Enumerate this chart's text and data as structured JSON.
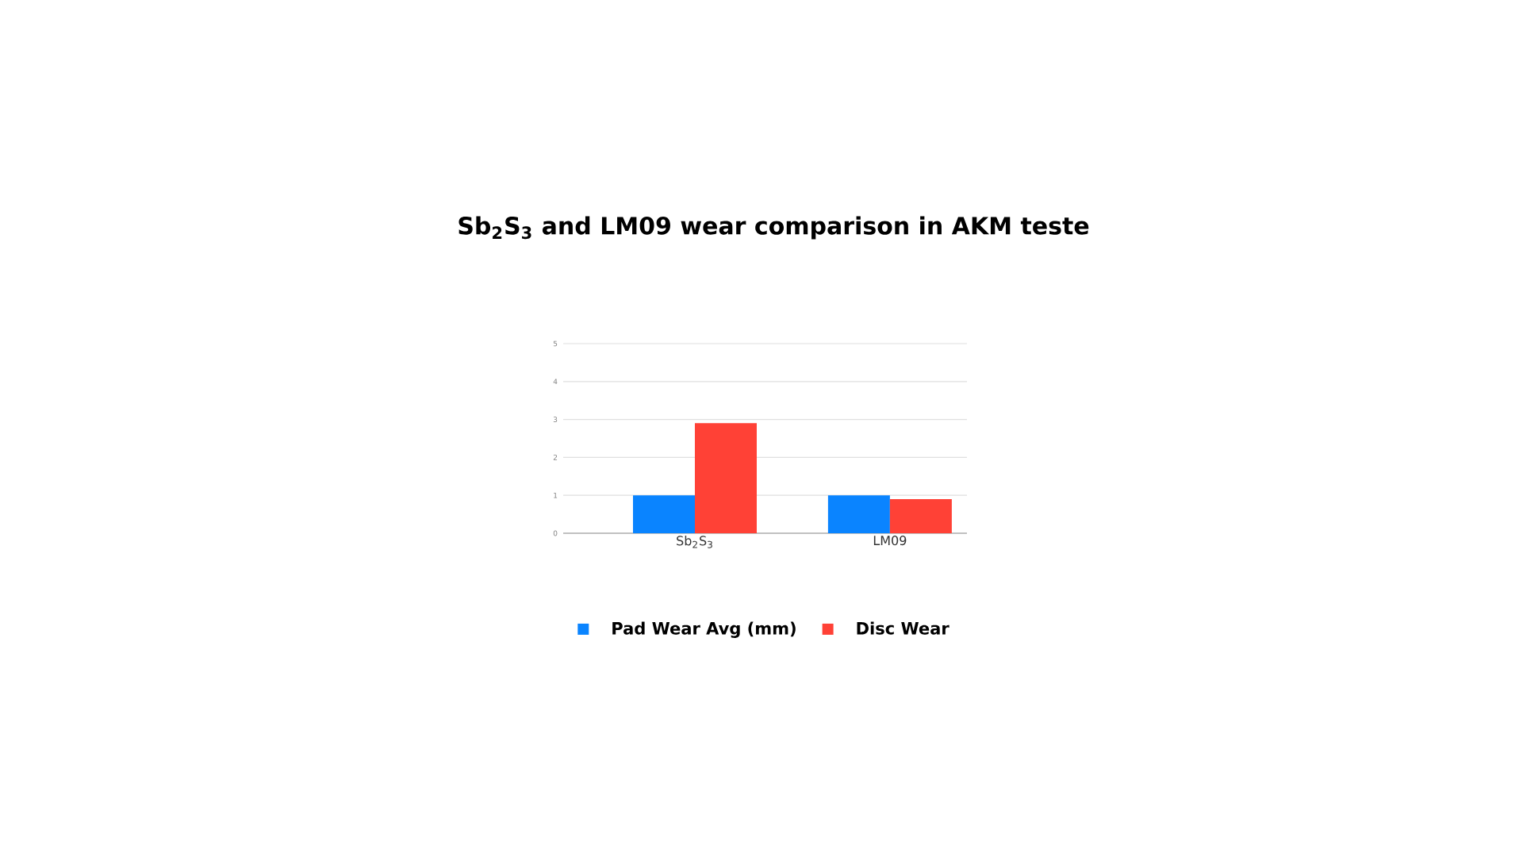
{
  "chart_data": {
    "type": "bar",
    "title": "Sb$_{2}$S$_{3}$ and LM09 wear comparison in AKM teste",
    "categories": [
      "Sb$_{2}$S$_{3}$",
      "LM09"
    ],
    "series": [
      {
        "name": "Pad Wear Avg (mm)",
        "color": "#0a84ff",
        "values": [
          1.0,
          1.0
        ]
      },
      {
        "name": "Disc Wear",
        "color": "#ff4136",
        "values": [
          2.9,
          0.9
        ]
      }
    ],
    "ylim": [
      0,
      5
    ],
    "yticks": [
      0,
      1,
      2,
      3,
      4,
      5
    ],
    "grid": "y",
    "legend": "bottom"
  }
}
